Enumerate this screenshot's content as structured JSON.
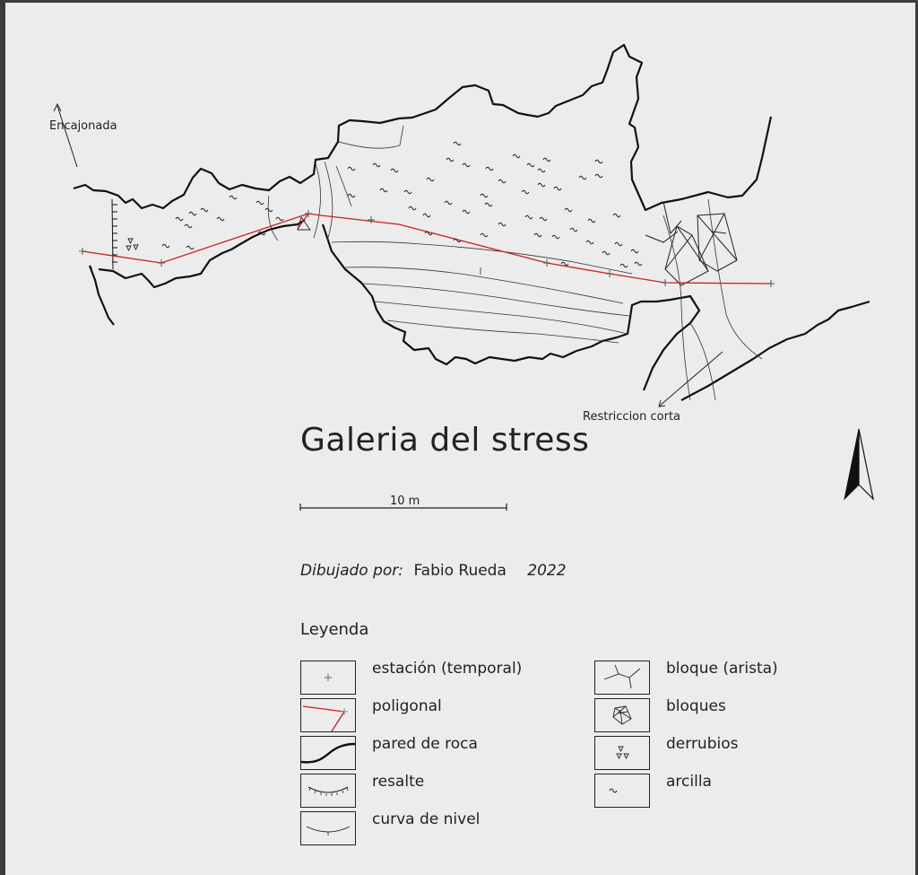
{
  "title": "Galeria del stress",
  "labels": {
    "encajonada": "Encajonada",
    "restriccion": "Restriccion corta"
  },
  "scale": {
    "label": "10 m"
  },
  "credit": {
    "prefix": "Dibujado por:",
    "author": "Fabio Rueda",
    "year": "2022"
  },
  "legend": {
    "title": "Leyenda",
    "items": [
      {
        "symbol": "station-icon",
        "label": "estación (temporal)"
      },
      {
        "symbol": "traverse-icon",
        "label": "poligonal"
      },
      {
        "symbol": "rock-wall-icon",
        "label": "pared  de roca"
      },
      {
        "symbol": "ledge-icon",
        "label": "resalte"
      },
      {
        "symbol": "contour-icon",
        "label": "curva de nivel"
      },
      {
        "symbol": "block-edge-icon",
        "label": "bloque (arista)"
      },
      {
        "symbol": "blocks-icon",
        "label": "bloques"
      },
      {
        "symbol": "debris-icon",
        "label": "derrubios"
      },
      {
        "symbol": "clay-icon",
        "label": "arcilla"
      }
    ]
  },
  "colors": {
    "ink": "#111111",
    "traverse": "#cc1f1f",
    "paper": "#ececec"
  }
}
